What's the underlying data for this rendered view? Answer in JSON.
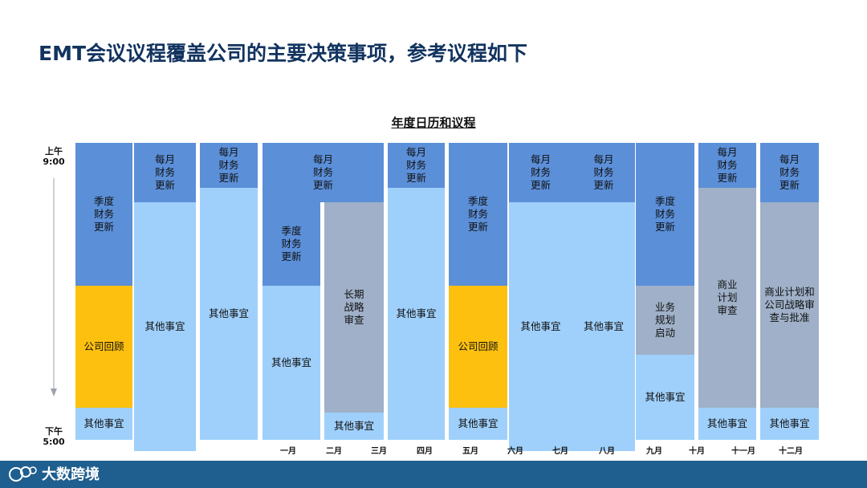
{
  "slide": {
    "title": "EMT会议议程覆盖公司的主要决策事项，参考议程如下"
  },
  "calendar": {
    "title": "年度日历和议程",
    "time_start": [
      "上午",
      "9:00"
    ],
    "time_end": [
      "下午",
      "5:00"
    ],
    "colors": {
      "dark_blue": "#5b8fd8",
      "light_blue": "#9fd0fb",
      "yellow": "#fdc00f",
      "gray": "#9fb0c8"
    },
    "blocks": [
      {
        "text": "季度\n财务\n更新",
        "color": "dark_blue"
      },
      {
        "text": "公司回顾",
        "color": "yellow"
      },
      {
        "text": "其他事宜",
        "color": "light_blue"
      },
      {
        "text": "每月\n财务\n更新",
        "color": "dark_blue"
      },
      {
        "text": "其他事宜",
        "color": "light_blue"
      },
      {
        "text": "每月\n财务\n更新",
        "color": "dark_blue"
      },
      {
        "text": "其他事宜",
        "color": "light_blue"
      },
      {
        "text": "每月\n财务\n更新",
        "color": "dark_blue"
      },
      {
        "text": "季度\n财务\n更新",
        "color": "dark_blue"
      },
      {
        "text": "其他事宜",
        "color": "light_blue"
      },
      {
        "text": "长期\n战略\n审查",
        "color": "gray"
      },
      {
        "text": "其他事宜",
        "color": "light_blue"
      },
      {
        "text": "每月\n财务\n更新",
        "color": "dark_blue"
      },
      {
        "text": "其他事宜",
        "color": "light_blue"
      },
      {
        "text": "季度\n财务\n更新",
        "color": "dark_blue"
      },
      {
        "text": "公司回顾",
        "color": "yellow"
      },
      {
        "text": "其他事宜",
        "color": "light_blue"
      },
      {
        "text": "每月\n财务\n更新",
        "color": "dark_blue"
      },
      {
        "text": "每月\n财务\n更新",
        "color": "dark_blue"
      },
      {
        "text": "",
        "color": "dark_blue"
      },
      {
        "text": "其他事宜",
        "color": "light_blue"
      },
      {
        "text": "其他事宜",
        "color": "light_blue"
      },
      {
        "text": "季度\n财务\n更新",
        "color": "dark_blue"
      },
      {
        "text": "业务\n规划\n启动",
        "color": "gray"
      },
      {
        "text": "其他事宜",
        "color": "light_blue"
      },
      {
        "text": "每月\n财务\n更新",
        "color": "dark_blue"
      },
      {
        "text": "商业\n计划\n审查",
        "color": "gray"
      },
      {
        "text": "其他事宜",
        "color": "light_blue"
      },
      {
        "text": "每月\n财务\n更新",
        "color": "dark_blue"
      },
      {
        "text": "商业计划和\n公司战略审\n查与批准",
        "color": "gray"
      },
      {
        "text": "其他事宜",
        "color": "light_blue"
      }
    ],
    "months": [
      "一月",
      "二月",
      "三月",
      "四月",
      "五月",
      "六月",
      "七月",
      "八月",
      "九月",
      "十月",
      "十一月",
      "十二月"
    ]
  },
  "footer": {
    "logo_text": "大数跨境"
  }
}
